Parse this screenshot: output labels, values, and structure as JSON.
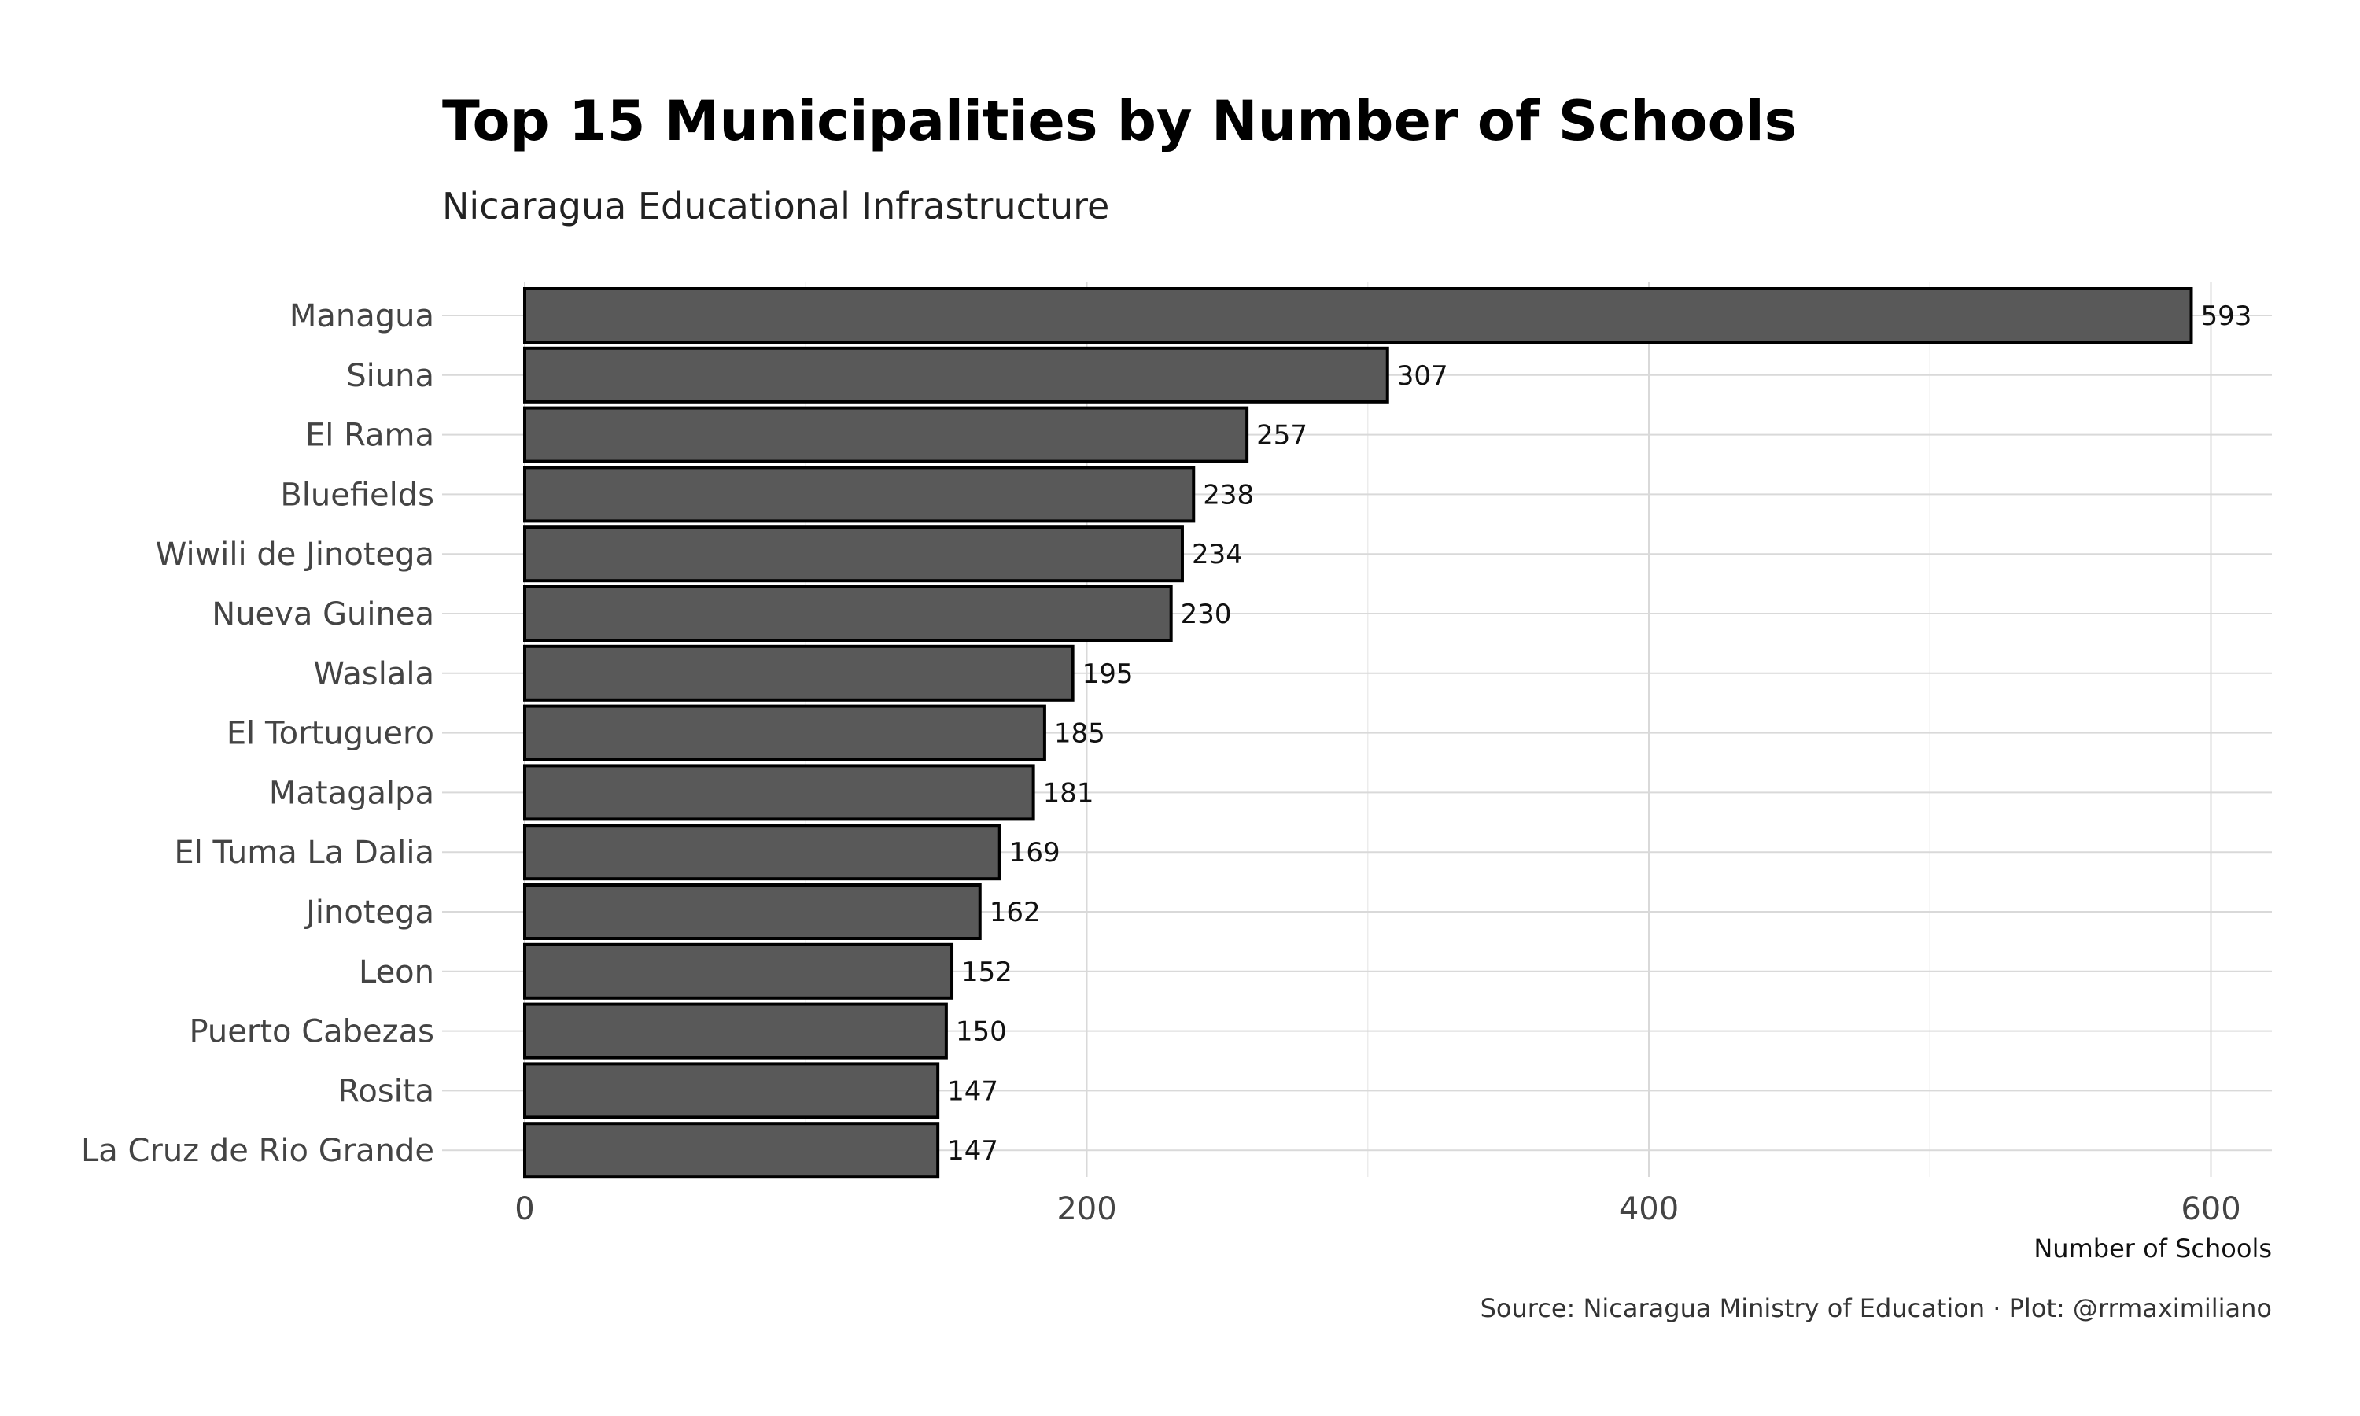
{
  "chart_data": {
    "type": "bar",
    "orientation": "horizontal",
    "title": "Top 15 Municipalities by Number of Schools",
    "subtitle": "Nicaragua Educational Infrastructure",
    "xlabel": "Number of Schools",
    "ylabel": "",
    "caption": "Source: Nicaragua Ministry of Education · Plot: @rrmaximiliano",
    "categories": [
      "Managua",
      "Siuna",
      "El Rama",
      "Bluefields",
      "Wiwili de Jinotega",
      "Nueva Guinea",
      "Waslala",
      "El Tortuguero",
      "Matagalpa",
      "El Tuma La Dalia",
      "Jinotega",
      "Leon",
      "Puerto Cabezas",
      "Rosita",
      "La Cruz de Rio Grande"
    ],
    "values": [
      593,
      307,
      257,
      238,
      234,
      230,
      195,
      185,
      181,
      169,
      162,
      152,
      150,
      147,
      147
    ],
    "xlim": [
      0,
      623
    ],
    "xticks": [
      0,
      200,
      400,
      600
    ],
    "xtick_labels": [
      "0",
      "200",
      "400",
      "600"
    ],
    "grid": true,
    "legend": "none",
    "bar_color": "#595959",
    "bar_outline_color": "#000000"
  }
}
